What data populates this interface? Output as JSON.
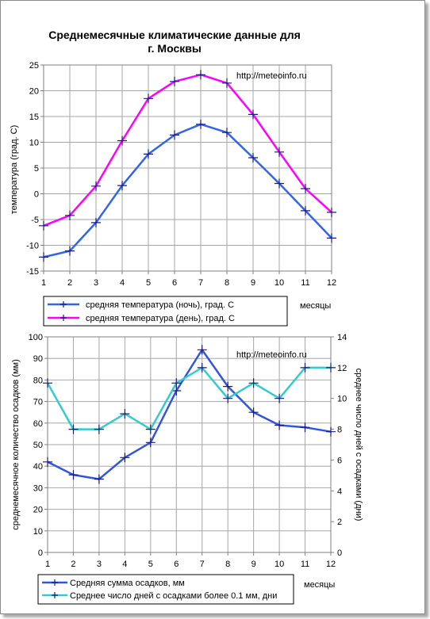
{
  "colors": {
    "grid": "#a6a6a6",
    "axis": "#808080",
    "plot_border": "#808080",
    "night_temp": "#3366e6",
    "day_temp": "#ff00ff",
    "precip": "#3355dd",
    "rain_days": "#33cccc",
    "marker": "#1a1a80"
  },
  "chart_data": [
    {
      "type": "line",
      "title": "Среднемесячные климатические данные для",
      "subtitle": "г. Москвы",
      "source": "http://meteoinfo.ru",
      "ylabel": "температура (град. С)",
      "xlabel": "месяцы",
      "ylim": [
        -15,
        25
      ],
      "yticks": [
        -15,
        -10,
        -5,
        0,
        5,
        10,
        15,
        20,
        25
      ],
      "x": [
        1,
        2,
        3,
        4,
        5,
        6,
        7,
        8,
        9,
        10,
        11,
        12
      ],
      "grid": true,
      "legend_position": "bottom",
      "series": [
        {
          "name": "средняя температура (ночь), град. С",
          "color": "#3366e6",
          "values": [
            -12.3,
            -11.1,
            -5.6,
            1.6,
            7.7,
            11.4,
            13.5,
            11.9,
            7.0,
            2.0,
            -3.3,
            -8.6
          ]
        },
        {
          "name": "средняя температура (день), град. С",
          "color": "#ff00ff",
          "values": [
            -6.2,
            -4.2,
            1.5,
            10.3,
            18.5,
            21.8,
            23.1,
            21.5,
            15.4,
            8.1,
            1.0,
            -3.6
          ]
        }
      ]
    },
    {
      "type": "line",
      "source": "http://meteoinfo.ru",
      "ylabel": "среднемесячное количество осадков (мм)",
      "ylabel_right": "среднее число дней с осадками (дни)",
      "xlabel": "месяцы",
      "ylim": [
        0,
        100
      ],
      "yticks": [
        0,
        10,
        20,
        30,
        40,
        50,
        60,
        70,
        80,
        90,
        100
      ],
      "ylim_right": [
        0,
        14
      ],
      "yticks_right": [
        0,
        2,
        4,
        6,
        8,
        10,
        12,
        14
      ],
      "x": [
        1,
        2,
        3,
        4,
        5,
        6,
        7,
        8,
        9,
        10,
        11,
        12
      ],
      "grid": true,
      "legend_position": "bottom",
      "series": [
        {
          "name": "Средняя сумма осадков, мм",
          "axis": "left",
          "color": "#3355dd",
          "values": [
            42,
            36,
            34,
            44,
            51,
            75,
            94,
            77,
            65,
            59,
            58,
            56
          ]
        },
        {
          "name": "Среднее число дней с  осадками более 0.1 мм, дни",
          "axis": "right",
          "color": "#33cccc",
          "values": [
            11,
            8,
            8,
            9,
            8,
            11,
            12,
            10,
            11,
            10,
            12,
            12
          ]
        }
      ]
    }
  ]
}
